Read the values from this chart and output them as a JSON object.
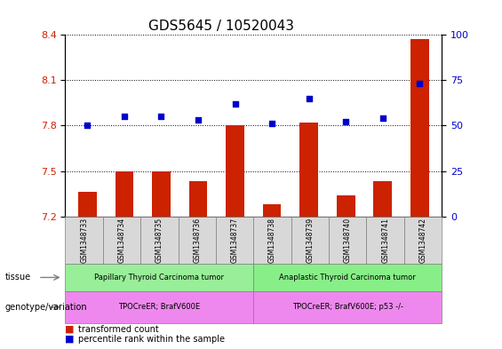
{
  "title": "GDS5645 / 10520043",
  "samples": [
    "GSM1348733",
    "GSM1348734",
    "GSM1348735",
    "GSM1348736",
    "GSM1348737",
    "GSM1348738",
    "GSM1348739",
    "GSM1348740",
    "GSM1348741",
    "GSM1348742"
  ],
  "bar_values": [
    7.36,
    7.5,
    7.5,
    7.43,
    7.8,
    7.28,
    7.82,
    7.34,
    7.43,
    8.37
  ],
  "dot_values": [
    50,
    55,
    55,
    53,
    62,
    51,
    65,
    52,
    54,
    73
  ],
  "ylim_left": [
    7.2,
    8.4
  ],
  "ylim_right": [
    0,
    100
  ],
  "yticks_left": [
    7.2,
    7.5,
    7.8,
    8.1,
    8.4
  ],
  "yticks_right": [
    0,
    25,
    50,
    75,
    100
  ],
  "bar_color": "#cc2200",
  "dot_color": "#0000cc",
  "bar_bottom": 7.2,
  "tissue_groups": [
    {
      "label": "Papillary Thyroid Carcinoma tumor",
      "start": 0,
      "end": 5,
      "color": "#99ee99"
    },
    {
      "label": "Anaplastic Thyroid Carcinoma tumor",
      "start": 5,
      "end": 10,
      "color": "#88ee88"
    }
  ],
  "genotype_groups": [
    {
      "label": "TPOCreER; BrafV600E",
      "start": 0,
      "end": 5,
      "color": "#ee88ee"
    },
    {
      "label": "TPOCreER; BrafV600E; p53 -/-",
      "start": 5,
      "end": 10,
      "color": "#ee88ee"
    }
  ],
  "tissue_label": "tissue",
  "genotype_label": "genotype/variation",
  "legend_items": [
    {
      "color": "#cc2200",
      "label": "transformed count"
    },
    {
      "color": "#0000cc",
      "label": "percentile rank within the sample"
    }
  ],
  "grid_color": "black",
  "plot_bg": "#ffffff",
  "tick_label_color_left": "#cc2200",
  "tick_label_color_right": "#0000cc",
  "title_fontsize": 11,
  "tick_fontsize": 8
}
